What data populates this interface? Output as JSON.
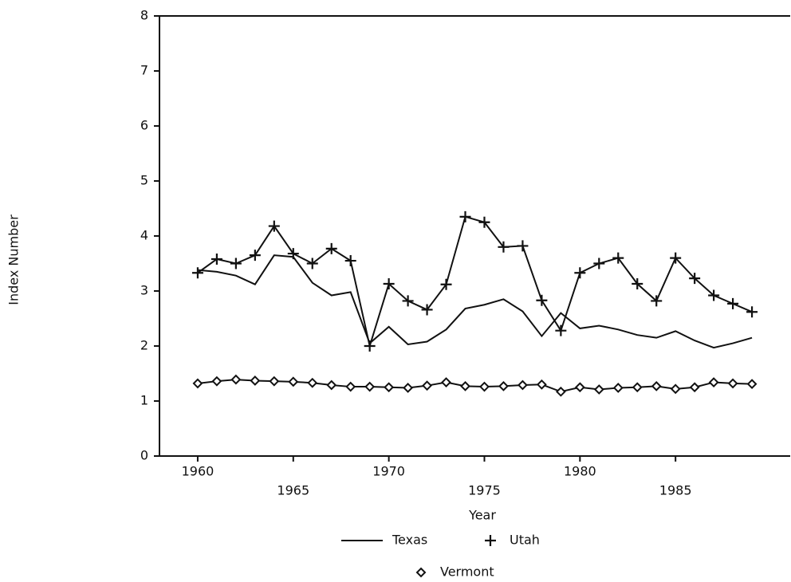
{
  "chart_data": {
    "type": "line",
    "x_label": "Year",
    "y_label": "Index Number",
    "x": [
      1960,
      1961,
      1962,
      1963,
      1964,
      1965,
      1966,
      1967,
      1968,
      1969,
      1970,
      1971,
      1972,
      1973,
      1974,
      1975,
      1976,
      1977,
      1978,
      1979,
      1980,
      1981,
      1982,
      1983,
      1984,
      1985,
      1986,
      1987,
      1988,
      1989
    ],
    "series": [
      {
        "name": "Texas",
        "color": "#111111",
        "marker": "none",
        "values": [
          3.38,
          3.35,
          3.28,
          3.12,
          3.65,
          3.62,
          3.15,
          2.92,
          2.98,
          2.05,
          2.35,
          2.03,
          2.08,
          2.3,
          2.68,
          2.75,
          2.85,
          2.63,
          2.18,
          2.6,
          2.32,
          2.37,
          2.3,
          2.2,
          2.15,
          2.27,
          2.1,
          1.97,
          2.05,
          2.15
        ]
      },
      {
        "name": "Utah",
        "color": "#111111",
        "marker": "plus",
        "values": [
          3.33,
          3.58,
          3.5,
          3.65,
          4.18,
          3.68,
          3.5,
          3.77,
          3.55,
          2.0,
          3.13,
          2.82,
          2.66,
          3.12,
          4.35,
          4.25,
          3.8,
          3.82,
          2.83,
          2.28,
          3.33,
          3.5,
          3.6,
          3.13,
          2.82,
          3.6,
          3.23,
          2.92,
          2.77,
          2.62
        ]
      },
      {
        "name": "Vermont",
        "color": "#111111",
        "marker": "diamond",
        "values": [
          1.32,
          1.36,
          1.39,
          1.37,
          1.36,
          1.35,
          1.33,
          1.29,
          1.26,
          1.26,
          1.25,
          1.24,
          1.28,
          1.34,
          1.27,
          1.26,
          1.27,
          1.29,
          1.3,
          1.17,
          1.25,
          1.21,
          1.24,
          1.25,
          1.27,
          1.22,
          1.25,
          1.34,
          1.32,
          1.31
        ]
      }
    ],
    "xlim": [
      1958,
      1991
    ],
    "xticks": [
      1960,
      1965,
      1970,
      1975,
      1980,
      1985
    ],
    "ylim": [
      0,
      8
    ],
    "yticks": [
      0,
      1,
      2,
      3,
      4,
      5,
      6,
      7,
      8
    ]
  }
}
